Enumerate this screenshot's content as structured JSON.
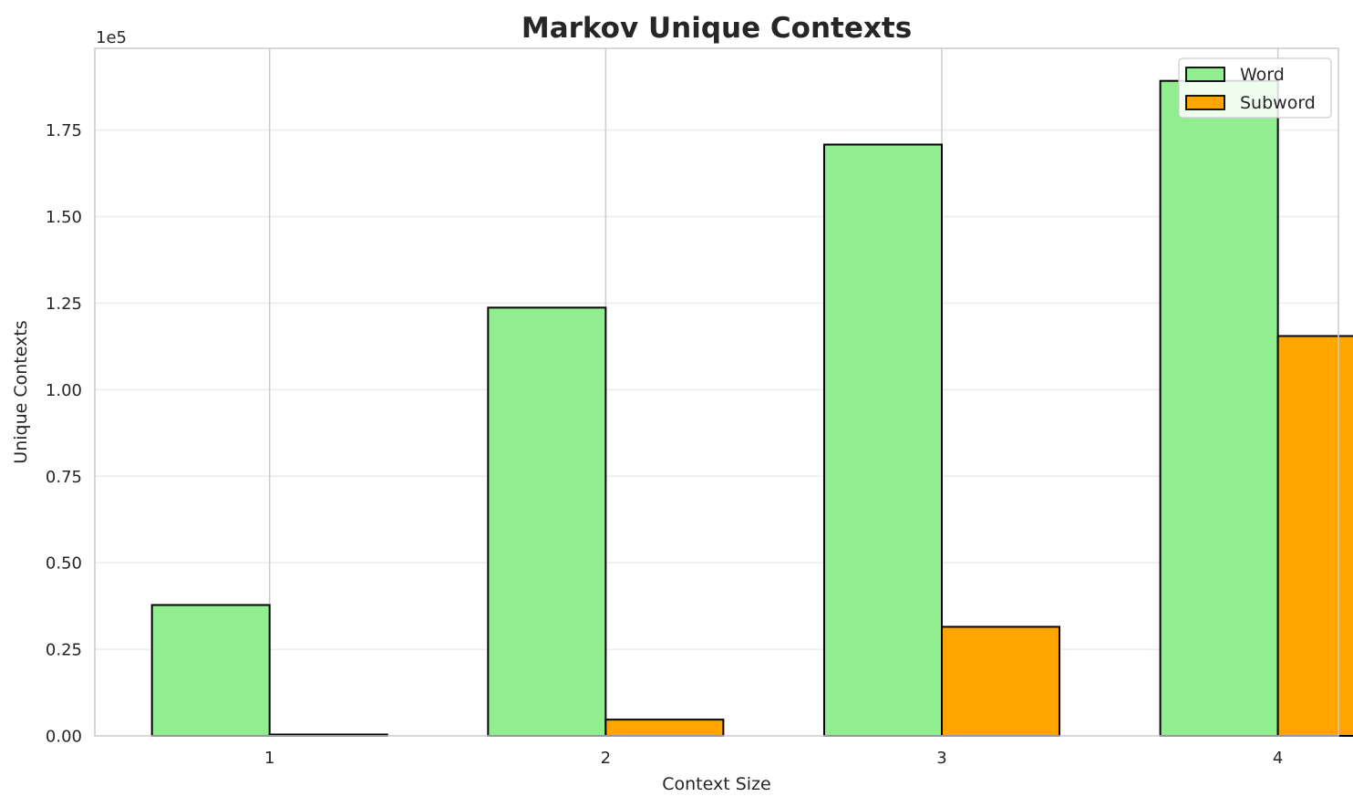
{
  "chart_data": {
    "type": "bar",
    "title": "Markov Unique Contexts",
    "xlabel": "Context Size",
    "ylabel": "Unique Contexts",
    "offset_label": "1e5",
    "categories": [
      "1",
      "2",
      "3",
      "4"
    ],
    "series": [
      {
        "name": "Word",
        "color": "#90EE90",
        "values": [
          37800,
          123700,
          170800,
          189200
        ]
      },
      {
        "name": "Subword",
        "color": "#FFA500",
        "values": [
          400,
          4700,
          31500,
          115500
        ]
      }
    ],
    "y_ticks": [
      0,
      25000,
      50000,
      75000,
      100000,
      125000,
      150000,
      175000
    ],
    "y_tick_labels": [
      "0.00",
      "0.25",
      "0.50",
      "0.75",
      "1.00",
      "1.25",
      "1.50",
      "1.75"
    ],
    "ylim": [
      0,
      198600
    ],
    "grid": true,
    "legend_position": "top-right"
  }
}
